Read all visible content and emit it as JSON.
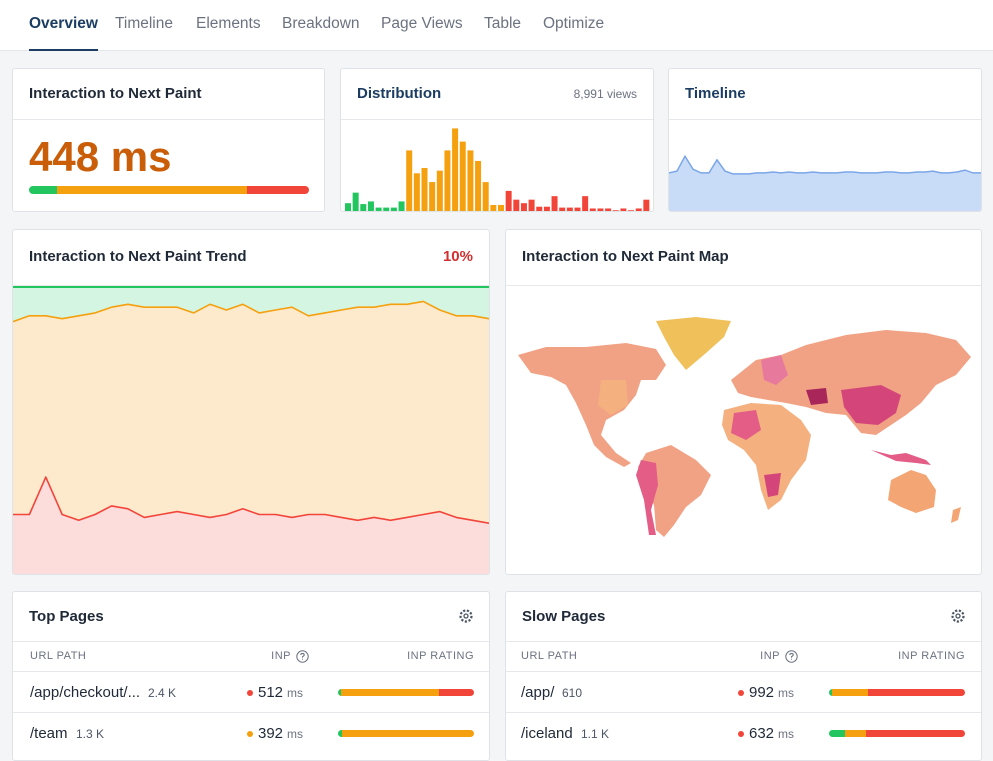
{
  "tabs": [
    "Overview",
    "Timeline",
    "Elements",
    "Breakdown",
    "Page Views",
    "Table",
    "Optimize"
  ],
  "active_tab": 0,
  "colors": {
    "good": "#22c55e",
    "needs_improvement": "#f5a00f",
    "poor": "#f2453a"
  },
  "inp_card": {
    "title": "Interaction to Next Paint",
    "value": "448 ms",
    "rating": [
      10,
      68,
      22
    ]
  },
  "distribution": {
    "title": "Distribution",
    "views": "8,991 views",
    "ylim": [
      0,
      100
    ],
    "good": [
      10,
      22,
      9,
      12,
      5,
      5,
      5,
      12
    ],
    "needs_improvement": [
      70,
      44,
      50,
      34,
      47,
      70,
      95,
      80,
      70,
      58,
      34,
      8,
      8
    ],
    "poor": [
      24,
      14,
      10,
      14,
      6,
      6,
      18,
      5,
      5,
      5,
      18,
      4,
      4,
      4,
      2,
      4,
      2,
      4,
      14
    ]
  },
  "timeline": {
    "title": "Timeline",
    "ylim": [
      0,
      100
    ],
    "values": [
      42,
      44,
      60,
      46,
      42,
      42,
      56,
      44,
      41,
      41,
      41,
      42,
      42,
      43,
      42,
      43,
      42,
      42,
      43,
      42,
      42,
      42,
      43,
      43,
      42,
      42,
      42,
      43,
      43,
      42,
      42,
      43,
      43,
      44,
      42,
      42,
      43,
      45,
      42,
      42
    ]
  },
  "trend": {
    "title": "Interaction to Next Paint Trend",
    "change": "10%",
    "ylim": [
      0,
      100
    ],
    "p75": [
      88,
      90,
      90,
      89,
      90,
      91,
      93,
      94,
      93,
      93,
      93,
      91,
      94,
      92,
      94,
      91,
      92,
      93,
      90,
      91,
      92,
      93,
      93,
      94,
      94,
      95,
      92,
      90,
      90,
      89
    ],
    "poor": [
      21,
      21,
      34,
      21,
      19,
      21,
      24,
      23,
      20,
      21,
      22,
      21,
      20,
      21,
      23,
      21,
      21,
      20,
      21,
      21,
      20,
      19,
      20,
      19,
      20,
      21,
      22,
      20,
      19,
      18
    ]
  },
  "map": {
    "title": "Interaction to Next Paint Map"
  },
  "tables": [
    {
      "title": "Top Pages",
      "columns": [
        "URL PATH",
        "INP",
        "INP RATING"
      ],
      "unit": "ms",
      "rows": [
        {
          "path": "/app/checkout/...",
          "views": "2.4 K",
          "inp": 512,
          "dot_color": "#f2453a",
          "rating": [
            2,
            72,
            26
          ]
        },
        {
          "path": "/team",
          "views": "1.3 K",
          "inp": 392,
          "dot_color": "#f5a00f",
          "rating": [
            3,
            97,
            0
          ]
        }
      ]
    },
    {
      "title": "Slow Pages",
      "columns": [
        "URL PATH",
        "INP",
        "INP RATING"
      ],
      "unit": "ms",
      "rows": [
        {
          "path": "/app/",
          "views": "610",
          "inp": 992,
          "dot_color": "#f2453a",
          "rating": [
            2,
            27,
            71
          ]
        },
        {
          "path": "/iceland",
          "views": "1.1 K",
          "inp": 632,
          "dot_color": "#f2453a",
          "rating": [
            12,
            15,
            73
          ]
        }
      ]
    }
  ]
}
